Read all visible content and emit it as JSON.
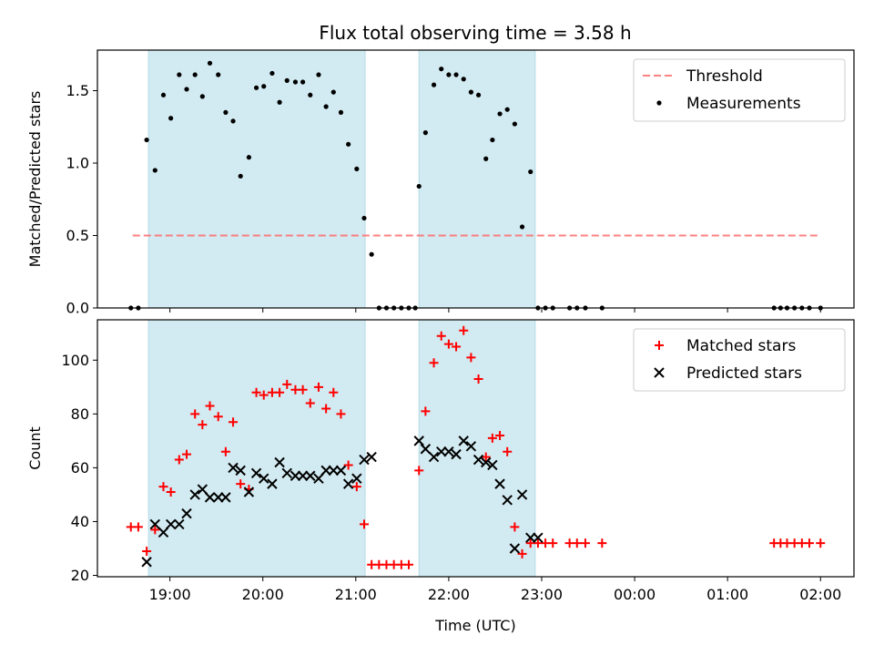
{
  "chart_data": [
    {
      "type": "scatter",
      "title": "Flux total observing time = 3.58 h",
      "xlabel": "",
      "ylabel": "Matched/Predicted stars",
      "ylim": [
        0,
        1.78
      ],
      "yticks": [
        0.0,
        0.5,
        1.0,
        1.5
      ],
      "ytick_labels": [
        "0.0",
        "0.5",
        "1.0",
        "1.5"
      ],
      "xlim_hours": [
        18.22,
        26.36
      ],
      "legend": "top-right",
      "grid": false,
      "shaded_intervals": [
        [
          18.77,
          21.1
        ],
        [
          21.68,
          22.93
        ]
      ],
      "shade_color": "#add8e6",
      "series": [
        {
          "name": "Threshold",
          "kind": "dashed-line",
          "color": "#ff6b6b",
          "x": [
            18.6,
            26.0
          ],
          "y": [
            0.5,
            0.5
          ]
        },
        {
          "name": "Measurements",
          "kind": "points",
          "color": "#000000",
          "x": [
            18.58,
            18.66,
            18.75,
            18.84,
            18.93,
            19.01,
            19.1,
            19.18,
            19.27,
            19.35,
            19.43,
            19.52,
            19.6,
            19.68,
            19.76,
            19.85,
            19.93,
            20.01,
            20.1,
            20.18,
            20.26,
            20.35,
            20.43,
            20.51,
            20.6,
            20.68,
            20.76,
            20.84,
            20.92,
            21.01,
            21.09,
            21.17,
            21.25,
            21.33,
            21.41,
            21.49,
            21.57,
            21.64,
            21.68,
            21.75,
            21.84,
            21.92,
            22.0,
            22.08,
            22.16,
            22.24,
            22.32,
            22.4,
            22.47,
            22.55,
            22.63,
            22.71,
            22.79,
            22.88,
            22.96,
            23.04,
            23.12,
            23.3,
            23.38,
            23.47,
            23.65,
            25.5,
            25.57,
            25.64,
            25.72,
            25.8,
            25.88,
            26.0
          ],
          "y": [
            0,
            0,
            1.16,
            0.95,
            1.47,
            1.31,
            1.61,
            1.51,
            1.61,
            1.46,
            1.69,
            1.61,
            1.35,
            1.29,
            0.91,
            1.04,
            1.52,
            1.53,
            1.62,
            1.42,
            1.57,
            1.56,
            1.56,
            1.47,
            1.61,
            1.39,
            1.49,
            1.35,
            1.13,
            0.96,
            0.62,
            0.37,
            0,
            0,
            0,
            0,
            0,
            0,
            0.84,
            1.21,
            1.54,
            1.65,
            1.61,
            1.61,
            1.58,
            1.49,
            1.47,
            1.03,
            1.16,
            1.34,
            1.37,
            1.27,
            0.56,
            0.94,
            0,
            0,
            0,
            0,
            0,
            0,
            0,
            0,
            0,
            0,
            0,
            0,
            0,
            0
          ]
        }
      ]
    },
    {
      "type": "scatter",
      "title": "",
      "xlabel": "Time (UTC)",
      "ylabel": "Count",
      "ylim": [
        19.5,
        115
      ],
      "yticks": [
        20,
        40,
        60,
        80,
        100
      ],
      "ytick_labels": [
        "20",
        "40",
        "60",
        "80",
        "100"
      ],
      "xlim_hours": [
        18.22,
        26.36
      ],
      "xticks_hours": [
        19,
        20,
        21,
        22,
        23,
        24,
        25,
        26
      ],
      "xtick_labels": [
        "19:00",
        "20:00",
        "21:00",
        "22:00",
        "23:00",
        "00:00",
        "01:00",
        "02:00"
      ],
      "legend": "top-right",
      "grid": false,
      "shaded_intervals": [
        [
          18.77,
          21.1
        ],
        [
          21.68,
          22.93
        ]
      ],
      "shade_color": "#add8e6",
      "series": [
        {
          "name": "Matched stars",
          "kind": "plus",
          "color": "#ff0000",
          "x": [
            18.58,
            18.66,
            18.75,
            18.84,
            18.93,
            19.01,
            19.1,
            19.18,
            19.27,
            19.35,
            19.43,
            19.52,
            19.6,
            19.68,
            19.76,
            19.85,
            19.93,
            20.01,
            20.1,
            20.18,
            20.26,
            20.35,
            20.43,
            20.51,
            20.6,
            20.68,
            20.76,
            20.84,
            20.92,
            21.01,
            21.09,
            21.17,
            21.25,
            21.33,
            21.41,
            21.49,
            21.57,
            21.68,
            21.75,
            21.84,
            21.92,
            22.0,
            22.08,
            22.16,
            22.24,
            22.32,
            22.4,
            22.47,
            22.55,
            22.63,
            22.71,
            22.79,
            22.88,
            22.96,
            23.04,
            23.12,
            23.3,
            23.38,
            23.47,
            23.65,
            25.5,
            25.57,
            25.64,
            25.72,
            25.8,
            25.88,
            26.0
          ],
          "y": [
            38,
            38,
            29,
            37,
            53,
            51,
            63,
            65,
            80,
            76,
            83,
            79,
            66,
            77,
            54,
            52,
            88,
            87,
            88,
            88,
            91,
            89,
            89,
            84,
            90,
            82,
            88,
            80,
            61,
            53,
            39,
            24,
            24,
            24,
            24,
            24,
            24,
            59,
            81,
            99,
            109,
            106,
            105,
            111,
            101,
            93,
            64,
            71,
            72,
            66,
            38,
            28,
            32,
            32,
            32,
            32,
            32,
            32,
            32,
            32,
            32,
            32,
            32,
            32,
            32,
            32,
            32
          ]
        },
        {
          "name": "Predicted stars",
          "kind": "x",
          "color": "#000000",
          "x": [
            18.75,
            18.84,
            18.93,
            19.01,
            19.1,
            19.18,
            19.27,
            19.35,
            19.43,
            19.52,
            19.6,
            19.68,
            19.76,
            19.85,
            19.93,
            20.01,
            20.1,
            20.18,
            20.26,
            20.35,
            20.43,
            20.51,
            20.6,
            20.68,
            20.76,
            20.84,
            20.92,
            21.01,
            21.09,
            21.17,
            21.68,
            21.75,
            21.84,
            21.92,
            22.0,
            22.08,
            22.16,
            22.24,
            22.32,
            22.4,
            22.47,
            22.55,
            22.63,
            22.71,
            22.79,
            22.88,
            22.96
          ],
          "y": [
            25,
            39,
            36,
            39,
            39,
            43,
            50,
            52,
            49,
            49,
            49,
            60,
            59,
            51,
            58,
            56,
            54,
            62,
            58,
            57,
            57,
            57,
            56,
            59,
            59,
            59,
            54,
            56,
            63,
            64,
            70,
            67,
            64,
            66,
            66,
            65,
            70,
            68,
            63,
            62,
            61,
            54,
            48,
            30,
            50,
            34,
            34
          ]
        }
      ]
    }
  ]
}
